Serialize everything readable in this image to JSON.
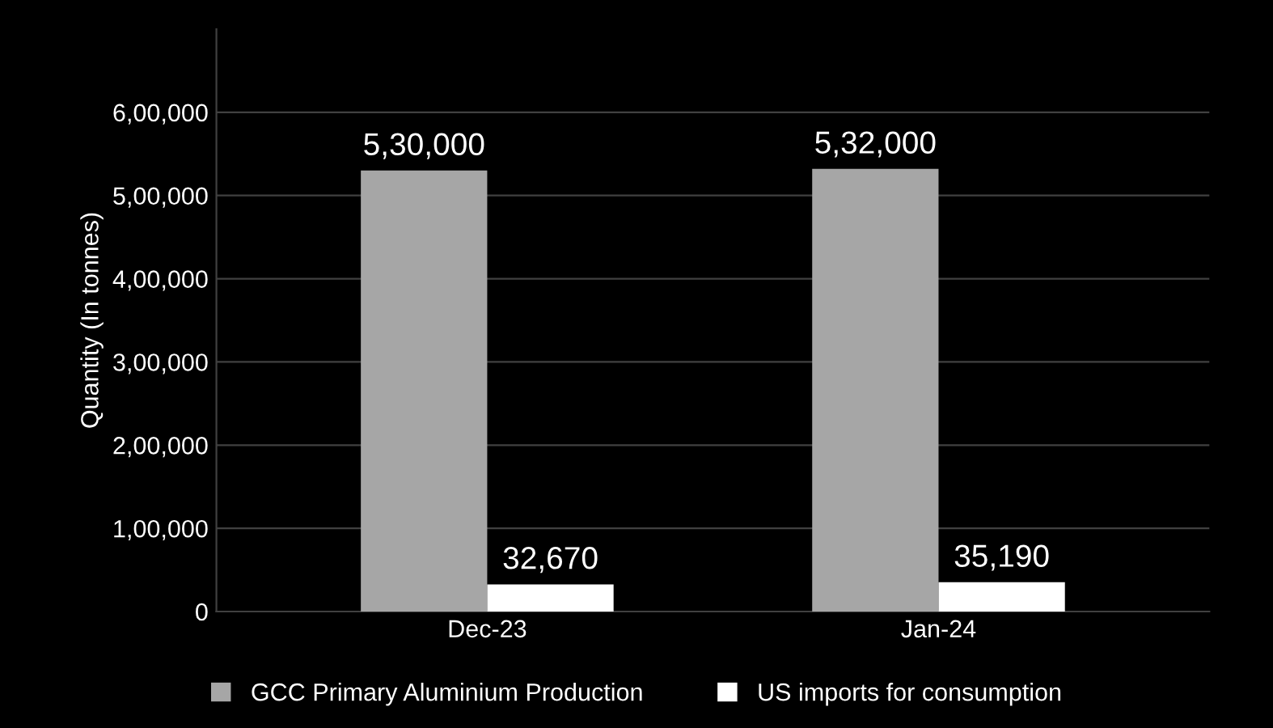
{
  "chart_data": {
    "type": "bar",
    "ylabel": "Quantity (In tonnes)",
    "categories": [
      "Dec-23",
      "Jan-24"
    ],
    "series": [
      {
        "name": "GCC Primary Aluminium Production",
        "color": "#a6a6a6",
        "values": [
          530000,
          532000
        ],
        "value_labels": [
          "5,30,000",
          "5,32,000"
        ]
      },
      {
        "name": "US imports for consumption",
        "color": "#ffffff",
        "values": [
          32670,
          35190
        ],
        "value_labels": [
          "32,670",
          "35,190"
        ]
      }
    ],
    "ylim": [
      0,
      700000
    ],
    "yticks": [
      {
        "value": 0,
        "label": "0"
      },
      {
        "value": 100000,
        "label": "1,00,000"
      },
      {
        "value": 200000,
        "label": "2,00,000"
      },
      {
        "value": 300000,
        "label": "3,00,000"
      },
      {
        "value": 400000,
        "label": "4,00,000"
      },
      {
        "value": 500000,
        "label": "5,00,000"
      },
      {
        "value": 600000,
        "label": "6,00,000"
      }
    ],
    "grid": "y",
    "legend": "bottom"
  }
}
